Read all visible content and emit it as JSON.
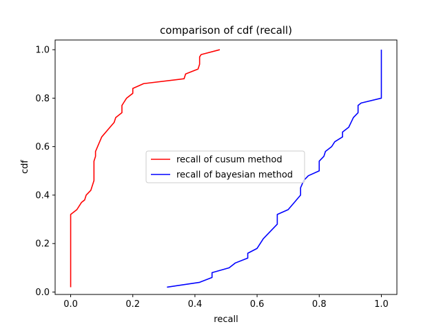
{
  "chart_data": {
    "type": "line",
    "title": "comparison of cdf (recall)",
    "xlabel": "recall",
    "ylabel": "cdf",
    "xlim": [
      -0.05,
      1.05
    ],
    "ylim": [
      -0.01,
      1.04
    ],
    "xticks": [
      0.0,
      0.2,
      0.4,
      0.6,
      0.8,
      1.0
    ],
    "xtick_labels": [
      "0.0",
      "0.2",
      "0.4",
      "0.6",
      "0.8",
      "1.0"
    ],
    "yticks": [
      0.0,
      0.2,
      0.4,
      0.6,
      0.8,
      1.0
    ],
    "ytick_labels": [
      "0.0",
      "0.2",
      "0.4",
      "0.6",
      "0.8",
      "1.0"
    ],
    "grid": false,
    "legend_position": "center",
    "series": [
      {
        "name": "recall of cusum method",
        "color": "#ff0000",
        "points": [
          [
            0.0,
            0.02
          ],
          [
            0.0,
            0.32
          ],
          [
            0.02,
            0.34
          ],
          [
            0.035,
            0.37
          ],
          [
            0.045,
            0.38
          ],
          [
            0.05,
            0.4
          ],
          [
            0.065,
            0.42
          ],
          [
            0.075,
            0.46
          ],
          [
            0.075,
            0.54
          ],
          [
            0.08,
            0.56
          ],
          [
            0.08,
            0.58
          ],
          [
            0.09,
            0.61
          ],
          [
            0.1,
            0.64
          ],
          [
            0.12,
            0.67
          ],
          [
            0.14,
            0.7
          ],
          [
            0.145,
            0.72
          ],
          [
            0.165,
            0.74
          ],
          [
            0.165,
            0.77
          ],
          [
            0.17,
            0.78
          ],
          [
            0.18,
            0.8
          ],
          [
            0.2,
            0.82
          ],
          [
            0.2,
            0.84
          ],
          [
            0.235,
            0.86
          ],
          [
            0.365,
            0.88
          ],
          [
            0.37,
            0.9
          ],
          [
            0.41,
            0.92
          ],
          [
            0.415,
            0.94
          ],
          [
            0.415,
            0.97
          ],
          [
            0.42,
            0.98
          ],
          [
            0.48,
            1.0
          ]
        ]
      },
      {
        "name": "recall of bayesian method",
        "color": "#0000ff",
        "points": [
          [
            0.31,
            0.02
          ],
          [
            0.415,
            0.04
          ],
          [
            0.455,
            0.06
          ],
          [
            0.455,
            0.08
          ],
          [
            0.51,
            0.1
          ],
          [
            0.53,
            0.12
          ],
          [
            0.57,
            0.14
          ],
          [
            0.57,
            0.16
          ],
          [
            0.6,
            0.18
          ],
          [
            0.62,
            0.22
          ],
          [
            0.665,
            0.28
          ],
          [
            0.665,
            0.32
          ],
          [
            0.7,
            0.34
          ],
          [
            0.72,
            0.37
          ],
          [
            0.74,
            0.4
          ],
          [
            0.74,
            0.43
          ],
          [
            0.75,
            0.46
          ],
          [
            0.765,
            0.48
          ],
          [
            0.8,
            0.5
          ],
          [
            0.8,
            0.54
          ],
          [
            0.815,
            0.56
          ],
          [
            0.82,
            0.58
          ],
          [
            0.84,
            0.6
          ],
          [
            0.85,
            0.62
          ],
          [
            0.875,
            0.64
          ],
          [
            0.875,
            0.66
          ],
          [
            0.895,
            0.68
          ],
          [
            0.91,
            0.72
          ],
          [
            0.925,
            0.74
          ],
          [
            0.925,
            0.77
          ],
          [
            0.935,
            0.78
          ],
          [
            1.0,
            0.8
          ],
          [
            1.0,
            1.0
          ]
        ]
      }
    ]
  }
}
